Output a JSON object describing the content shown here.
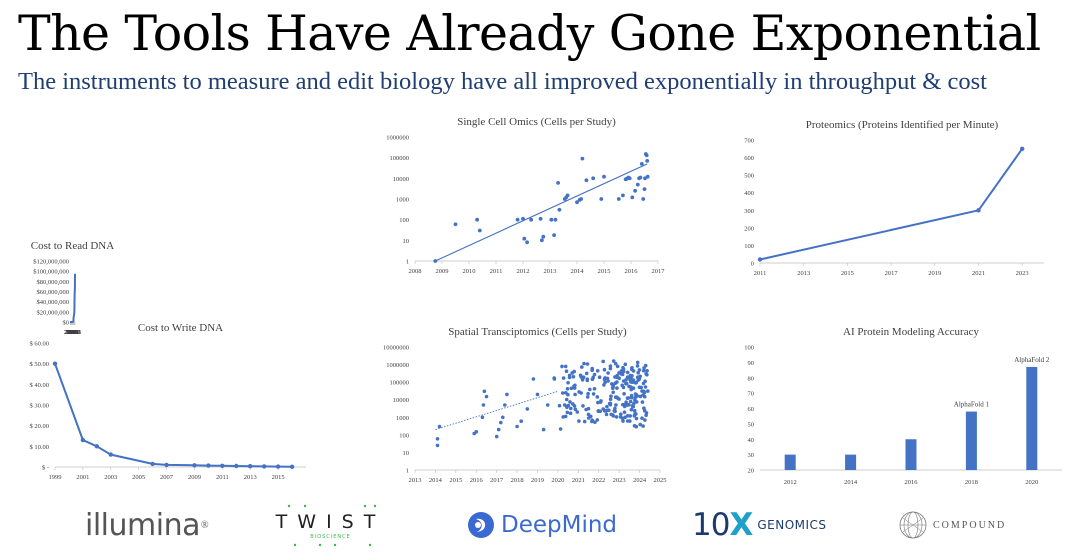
{
  "title": "The Tools Have Already Gone Exponential",
  "subtitle": "The instruments to measure and edit biology have all improved exponentially in throughput & cost",
  "colors": {
    "series": "#4472c4",
    "axis": "#bfbfbf",
    "subtitle": "#1f3e73"
  },
  "logos": {
    "illumina": "illumina",
    "illumina_mark": "®",
    "twist": "TWIST",
    "twist_sub": "BIOSCIENCE",
    "deepmind": "DeepMind",
    "tenx_num": "10",
    "tenx_x": "X",
    "tenx_gen": "GENOMICS",
    "compound": "COMPOUND",
    "icons": [
      "deepmind-icon",
      "compound-globe-icon",
      "twist-dots-icon"
    ]
  },
  "chart_data": [
    {
      "id": "read",
      "type": "line",
      "title": "Cost to Read DNA",
      "xlim": [
        2001,
        2022
      ],
      "ylim": [
        0,
        120000000
      ],
      "x_ticks": [
        2001,
        2003,
        2005,
        2007,
        2009,
        2011,
        2013,
        2015,
        2017,
        2019,
        2021
      ],
      "y_ticks": [
        0,
        20000000,
        40000000,
        60000000,
        80000000,
        100000000,
        120000000
      ],
      "y_tick_labels": [
        "$0",
        "$20,000,000",
        "$40,000,000",
        "$60,000,000",
        "$80,000,000",
        "$100,000,000",
        "$120,000,000"
      ],
      "series": [
        {
          "markers": false,
          "x": [
            2001.0,
            2001.5,
            2002.0,
            2002.5,
            2003.0,
            2003.5,
            2004.0,
            2004.5,
            2005.0,
            2005.5,
            2006.0,
            2006.5,
            2007.0,
            2007.25,
            2007.5,
            2008.0,
            2009.0,
            2011.0,
            2013.0,
            2015.0,
            2017.0,
            2019.0,
            2021.0,
            2022.0
          ],
          "y": [
            95000000,
            70000000,
            62000000,
            53000000,
            40000000,
            21000000,
            19000000,
            16000000,
            15000000,
            12000000,
            11000000,
            10000000,
            9000000,
            8000000,
            3000000,
            800000,
            400000,
            100000,
            50000,
            20000,
            10000,
            5000,
            3000,
            2000
          ]
        }
      ]
    },
    {
      "id": "sc",
      "type": "scatter",
      "title": "Single Cell Omics (Cells per Study)",
      "xlim": [
        2008,
        2017
      ],
      "ylog": true,
      "ylim": [
        1,
        1000000
      ],
      "x_ticks": [
        2008,
        2009,
        2010,
        2011,
        2012,
        2013,
        2014,
        2015,
        2016,
        2017
      ],
      "y_ticks": [
        1,
        10,
        100,
        1000,
        10000,
        100000,
        1000000
      ],
      "y_tick_labels": [
        "1",
        "10",
        "100",
        "1000",
        "10000",
        "100000",
        "1000000"
      ],
      "trendline": {
        "x": [
          2008.75,
          2016.6
        ],
        "y": [
          1,
          50000
        ]
      },
      "series": [
        {
          "markers": true,
          "x": [
            2008.75,
            2009.5,
            2010.3,
            2010.4,
            2011.8,
            2012.0,
            2012.05,
            2012.15,
            2012.3,
            2012.65,
            2012.7,
            2012.75,
            2013.05,
            2013.15,
            2013.2,
            2013.3,
            2013.35,
            2013.55,
            2013.6,
            2013.65,
            2014.0,
            2014.1,
            2014.15,
            2014.2,
            2014.35,
            2014.6,
            2014.9,
            2015.0,
            2015.55,
            2015.7,
            2015.8,
            2015.85,
            2015.9,
            2015.95,
            2016.05,
            2016.15,
            2016.25,
            2016.3,
            2016.35,
            2016.4,
            2016.45,
            2016.5,
            2016.52,
            2016.55,
            2016.58,
            2016.6,
            2016.62
          ],
          "y": [
            1,
            60,
            100,
            30,
            100,
            110,
            12,
            8,
            100,
            110,
            10,
            15,
            100,
            18,
            100,
            6000,
            300,
            1000,
            1200,
            1500,
            700,
            900,
            1000,
            90000,
            8000,
            10000,
            1000,
            12000,
            1000,
            1500,
            9000,
            9500,
            11000,
            10000,
            1200,
            2500,
            5000,
            10000,
            11000,
            50000,
            1000,
            3000,
            10000,
            150000,
            130000,
            70000,
            12000
          ]
        }
      ]
    },
    {
      "id": "prot",
      "type": "line",
      "title": "Proteomics (Proteins Identified per Minute)",
      "xlim": [
        2011,
        2024
      ],
      "ylim": [
        0,
        700
      ],
      "x_ticks": [
        2011,
        2013,
        2015,
        2017,
        2019,
        2021,
        2023
      ],
      "y_ticks": [
        0,
        100,
        200,
        300,
        400,
        500,
        600,
        700
      ],
      "y_tick_labels": [
        "0",
        "100",
        "200",
        "300",
        "400",
        "500",
        "600",
        "700"
      ],
      "series": [
        {
          "markers": true,
          "x": [
            2011,
            2021,
            2023
          ],
          "y": [
            20,
            300,
            650
          ]
        }
      ]
    },
    {
      "id": "write",
      "type": "line",
      "title": "Cost to Write DNA",
      "xlim": [
        1999,
        2017
      ],
      "ylim": [
        0,
        60
      ],
      "x_ticks": [
        1999,
        2001,
        2003,
        2005,
        2007,
        2009,
        2011,
        2013,
        2015
      ],
      "y_ticks": [
        0,
        10,
        20,
        30,
        40,
        50,
        60
      ],
      "y_tick_labels": [
        "$ -",
        "$ 10.00",
        "$ 20.00",
        "$ 30.00",
        "$ 40.00",
        "$ 50.00",
        "$ 60.00"
      ],
      "series": [
        {
          "markers": true,
          "x": [
            1999,
            2001,
            2002,
            2003,
            2006,
            2007,
            2009,
            2010,
            2011,
            2012,
            2013,
            2014,
            2015,
            2016
          ],
          "y": [
            50,
            13,
            10,
            6,
            1.5,
            1.0,
            0.8,
            0.7,
            0.6,
            0.5,
            0.4,
            0.3,
            0.2,
            0.1
          ]
        }
      ]
    },
    {
      "id": "spatial",
      "type": "scatter",
      "title": "Spatial Transciptomics (Cells per Study)",
      "xlim": [
        2013,
        2025
      ],
      "ylog": true,
      "ylim": [
        1,
        10000000
      ],
      "x_ticks": [
        2013,
        2014,
        2015,
        2016,
        2017,
        2018,
        2019,
        2020,
        2021,
        2022,
        2023,
        2024,
        2025
      ],
      "y_ticks": [
        1,
        10,
        100,
        1000,
        10000,
        100000,
        1000000,
        10000000
      ],
      "y_tick_labels": [
        "1",
        "10",
        "100",
        "1000",
        "10000",
        "100000",
        "1000000",
        "10000000"
      ],
      "trendline": {
        "x": [
          2014.0,
          2020.0
        ],
        "y": [
          200,
          30000
        ]
      }
    },
    {
      "id": "ai",
      "type": "bar",
      "title": "AI Protein Modeling Accuracy",
      "categories": [
        "2012",
        "2014",
        "2016",
        "2018",
        "2020"
      ],
      "values": [
        30,
        30,
        40,
        58,
        87
      ],
      "ylim": [
        20,
        100
      ],
      "y_ticks": [
        20,
        30,
        40,
        50,
        60,
        70,
        80,
        90,
        100
      ],
      "y_tick_labels": [
        "20",
        "30",
        "40",
        "50",
        "60",
        "70",
        "80",
        "90",
        "100"
      ],
      "annotations": [
        {
          "category": "2018",
          "value": 58,
          "text": "AlphaFold 1"
        },
        {
          "category": "2020",
          "value": 87,
          "text": "AlphaFold 2"
        }
      ]
    }
  ]
}
